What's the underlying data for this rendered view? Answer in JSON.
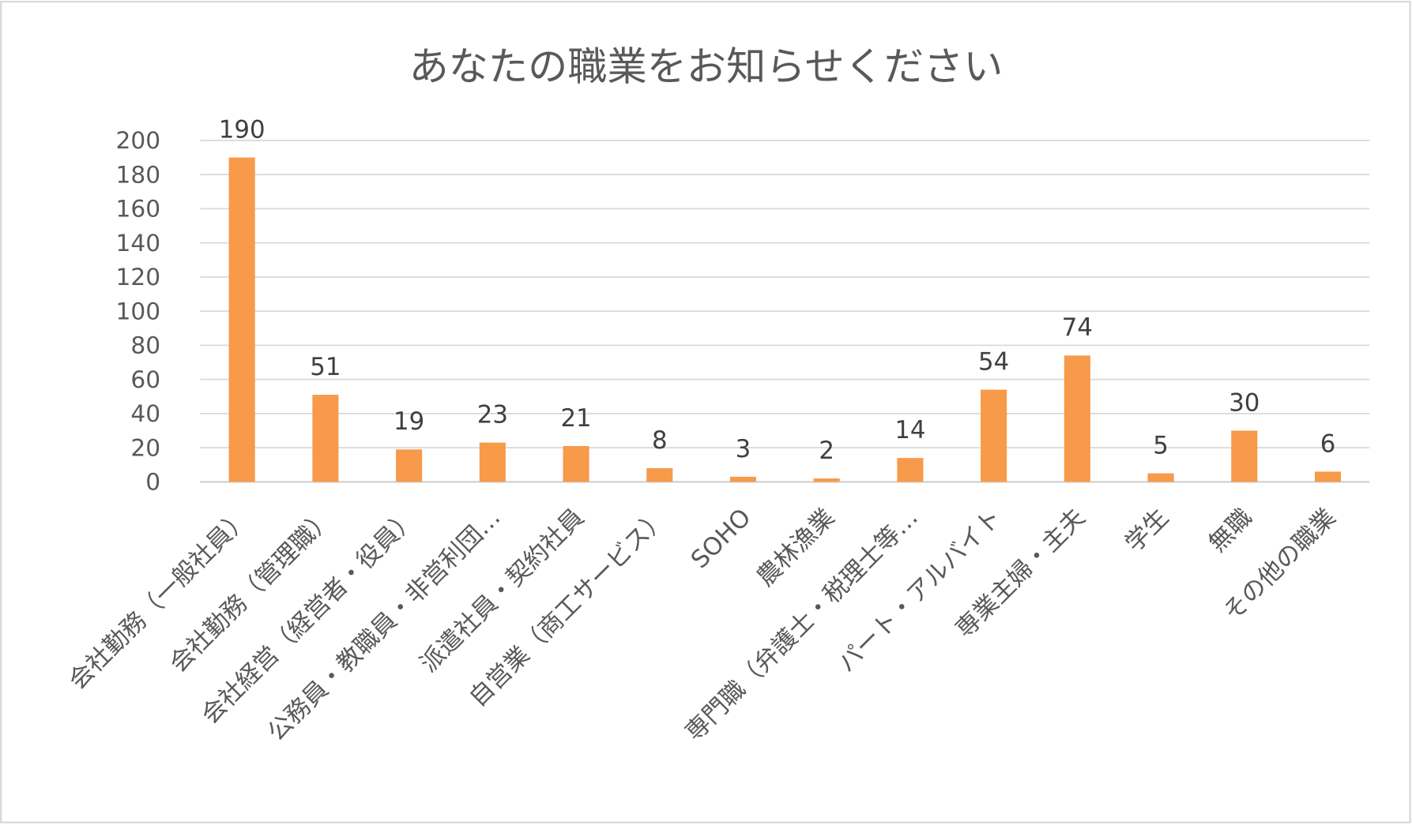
{
  "chart_data": {
    "type": "bar",
    "title": "あなたの職業をお知らせください",
    "xlabel": "",
    "ylabel": "",
    "ylim": [
      0,
      200
    ],
    "yticks": [
      0,
      20,
      40,
      60,
      80,
      100,
      120,
      140,
      160,
      180,
      200
    ],
    "grid": true,
    "legend": "none",
    "bar_color": "#F79A4A",
    "categories": [
      "会社勤務（一般社員）",
      "会社勤務（管理職）",
      "会社経営（経営者・役員）",
      "公務員・教職員・非営利団…",
      "派遣社員・契約社員",
      "自営業（商工サービス）",
      "SOHO",
      "農林漁業",
      "専門職（弁護士・税理士等…",
      "パート・アルバイト",
      "専業主婦・主夫",
      "学生",
      "無職",
      "その他の職業"
    ],
    "values": [
      190,
      51,
      19,
      23,
      21,
      8,
      3,
      2,
      14,
      54,
      74,
      5,
      30,
      6
    ],
    "data_labels": [
      "190",
      "51",
      "19",
      "23",
      "21",
      "8",
      "3",
      "2",
      "14",
      "54",
      "74",
      "5",
      "30",
      "6"
    ]
  }
}
